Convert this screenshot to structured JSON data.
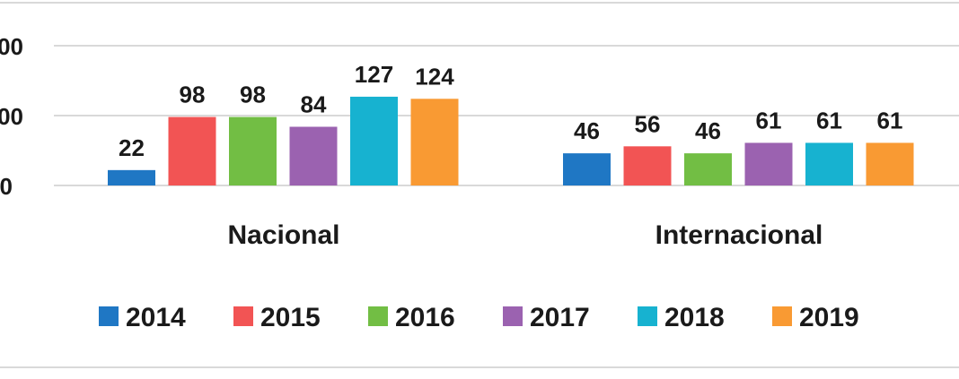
{
  "chart_data": {
    "type": "bar",
    "categories": [
      "Nacional",
      "Internacional"
    ],
    "series": [
      {
        "name": "2014",
        "color": "#1F77C4",
        "values": [
          22,
          46
        ]
      },
      {
        "name": "2015",
        "color": "#F25454",
        "values": [
          98,
          56
        ]
      },
      {
        "name": "2016",
        "color": "#72BE44",
        "values": [
          98,
          46
        ]
      },
      {
        "name": "2017",
        "color": "#9B62B0",
        "values": [
          84,
          61
        ]
      },
      {
        "name": "2018",
        "color": "#17B2D0",
        "values": [
          127,
          61
        ]
      },
      {
        "name": "2019",
        "color": "#F99A33",
        "values": [
          124,
          61
        ]
      }
    ],
    "y_tick_labels": [
      "00",
      "00",
      "0"
    ],
    "ylim": [
      0,
      200
    ],
    "grid": true,
    "legend_position": "bottom"
  }
}
